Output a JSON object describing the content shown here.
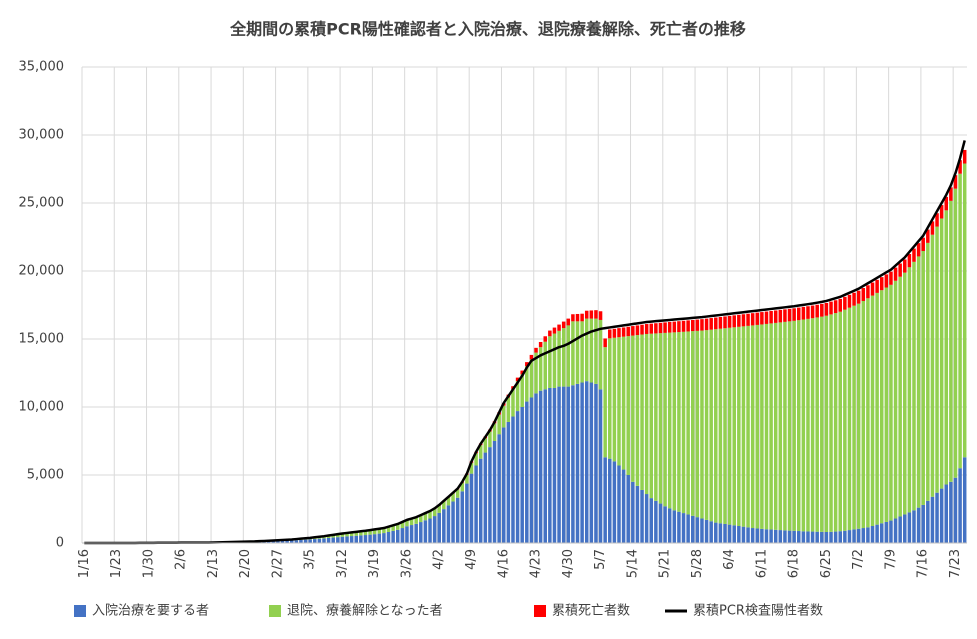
{
  "chart_data": {
    "type": "bar",
    "stacked": true,
    "grid": true,
    "legend": "bottom",
    "title": "全期間の累積PCR陽性確認者と入院治療、退院療養解除、死亡者の推移",
    "ylim": [
      0,
      35000
    ],
    "yticks": [
      0,
      {
        "value": 5000,
        "label": "5,000"
      },
      {
        "value": 10000,
        "label": "10,000"
      },
      {
        "value": 15000,
        "label": "15,000"
      },
      {
        "value": 20000,
        "label": "20,000"
      },
      {
        "value": 25000,
        "label": "25,000"
      },
      {
        "value": 30000,
        "label": "30,000"
      },
      {
        "value": 35000,
        "label": "35,000"
      }
    ],
    "categories": [
      "1/16",
      null,
      null,
      null,
      null,
      null,
      null,
      "1/23",
      null,
      null,
      null,
      null,
      null,
      null,
      "1/30",
      null,
      null,
      null,
      null,
      null,
      null,
      "2/6",
      null,
      null,
      null,
      null,
      null,
      null,
      "2/13",
      null,
      null,
      null,
      null,
      null,
      null,
      "2/20",
      null,
      null,
      null,
      null,
      null,
      null,
      "2/27",
      null,
      null,
      null,
      null,
      null,
      null,
      "3/5",
      null,
      null,
      null,
      null,
      null,
      null,
      "3/12",
      null,
      null,
      null,
      null,
      null,
      null,
      "3/19",
      null,
      null,
      null,
      null,
      null,
      null,
      "3/26",
      null,
      null,
      null,
      null,
      null,
      null,
      "4/2",
      null,
      null,
      null,
      null,
      null,
      null,
      "4/9",
      null,
      null,
      null,
      null,
      null,
      null,
      "4/16",
      null,
      null,
      null,
      null,
      null,
      null,
      "4/23",
      null,
      null,
      null,
      null,
      null,
      null,
      "4/30",
      null,
      null,
      null,
      null,
      null,
      null,
      "5/7",
      null,
      null,
      null,
      null,
      null,
      null,
      "5/14",
      null,
      null,
      null,
      null,
      null,
      null,
      "5/21",
      null,
      null,
      null,
      null,
      null,
      null,
      "5/28",
      null,
      null,
      null,
      null,
      null,
      null,
      "6/4",
      null,
      null,
      null,
      null,
      null,
      null,
      "6/11",
      null,
      null,
      null,
      null,
      null,
      null,
      "6/18",
      null,
      null,
      null,
      null,
      null,
      null,
      "6/25",
      null,
      null,
      null,
      null,
      null,
      null,
      "7/2",
      null,
      null,
      null,
      null,
      null,
      null,
      "7/9",
      null,
      null,
      null,
      null,
      null,
      null,
      "7/16",
      null,
      null,
      null,
      null,
      null,
      null,
      "7/23",
      null,
      null
    ],
    "series": [
      {
        "name": "入院治療を要する者",
        "color": "#4472c4",
        "values": [
          1,
          1,
          1,
          1,
          1,
          1,
          1,
          2,
          2,
          2,
          4,
          4,
          7,
          7,
          11,
          12,
          14,
          17,
          20,
          20,
          22,
          24,
          24,
          24,
          23,
          23,
          24,
          24,
          33,
          42,
          46,
          50,
          58,
          66,
          74,
          80,
          88,
          95,
          110,
          117,
          127,
          138,
          150,
          163,
          176,
          188,
          208,
          228,
          248,
          265,
          290,
          315,
          340,
          370,
          400,
          430,
          460,
          485,
          510,
          535,
          560,
          585,
          615,
          650,
          690,
          730,
          810,
          890,
          970,
          1100,
          1230,
          1320,
          1410,
          1540,
          1670,
          1800,
          1980,
          2210,
          2490,
          2770,
          3050,
          3330,
          3800,
          4370,
          5100,
          5700,
          6200,
          6650,
          7050,
          7500,
          8000,
          8500,
          8900,
          9300,
          9700,
          10000,
          10400,
          10700,
          11000,
          11200,
          11300,
          11400,
          11400,
          11500,
          11500,
          11500,
          11600,
          11700,
          11800,
          11900,
          11800,
          11700,
          11300,
          6300,
          6200,
          6000,
          5700,
          5400,
          5000,
          4500,
          4200,
          3900,
          3600,
          3300,
          3100,
          2900,
          2700,
          2550,
          2400,
          2300,
          2200,
          2100,
          2000,
          1900,
          1800,
          1700,
          1600,
          1500,
          1450,
          1400,
          1350,
          1300,
          1250,
          1200,
          1150,
          1100,
          1070,
          1040,
          1010,
          990,
          970,
          950,
          930,
          910,
          900,
          880,
          860,
          850,
          840,
          830,
          820,
          810,
          820,
          840,
          870,
          900,
          950,
          1000,
          1050,
          1100,
          1150,
          1250,
          1350,
          1450,
          1550,
          1650,
          1800,
          1950,
          2100,
          2250,
          2400,
          2600,
          2800,
          3100,
          3400,
          3700,
          4000,
          4300,
          4500,
          4800,
          5500,
          6300
        ]
      },
      {
        "name": "退院、療養解除となった者",
        "color": "#92d050",
        "values": [
          0,
          0,
          0,
          0,
          0,
          0,
          0,
          0,
          0,
          0,
          0,
          0,
          0,
          0,
          0,
          0,
          0,
          0,
          0,
          0,
          0,
          1,
          1,
          2,
          3,
          3,
          4,
          4,
          6,
          7,
          8,
          9,
          11,
          13,
          15,
          18,
          20,
          23,
          27,
          30,
          35,
          39,
          46,
          53,
          59,
          67,
          76,
          86,
          96,
          108,
          122,
          137,
          151,
          170,
          189,
          208,
          226,
          240,
          254,
          268,
          282,
          297,
          315,
          328,
          337,
          346,
          363,
          382,
          400,
          418,
          435,
          445,
          455,
          472,
          490,
          508,
          526,
          540,
          560,
          580,
          600,
          620,
          640,
          660,
          800,
          900,
          1000,
          1050,
          1150,
          1300,
          1450,
          1600,
          1800,
          2000,
          2200,
          2400,
          2600,
          2800,
          3000,
          3200,
          3500,
          3800,
          4000,
          4100,
          4300,
          4500,
          4700,
          4600,
          4500,
          4600,
          4700,
          4800,
          5100,
          8100,
          8850,
          9090,
          9430,
          9770,
          10210,
          10750,
          11090,
          11430,
          11770,
          12090,
          12310,
          12530,
          12750,
          12920,
          13090,
          13210,
          13330,
          13455,
          13580,
          13700,
          13820,
          13950,
          14085,
          14220,
          14305,
          14390,
          14475,
          14560,
          14645,
          14730,
          14815,
          14900,
          14965,
          15030,
          15098,
          15156,
          15214,
          15272,
          15330,
          15388,
          15436,
          15504,
          15572,
          15630,
          15688,
          15756,
          15824,
          15902,
          15990,
          16068,
          16136,
          16254,
          16352,
          16450,
          16548,
          16696,
          16844,
          16942,
          17040,
          17138,
          17236,
          17334,
          17482,
          17630,
          17778,
          18026,
          18274,
          18472,
          18670,
          18968,
          19266,
          19564,
          19862,
          20160,
          20658,
          21256,
          21654,
          21602
        ]
      },
      {
        "name": "累積死亡者数",
        "color": "#ff0000",
        "values": [
          0,
          0,
          0,
          0,
          0,
          0,
          0,
          0,
          0,
          0,
          0,
          0,
          0,
          0,
          0,
          0,
          0,
          0,
          0,
          0,
          0,
          0,
          0,
          0,
          0,
          0,
          0,
          0,
          1,
          1,
          1,
          1,
          1,
          1,
          1,
          2,
          2,
          2,
          3,
          3,
          3,
          3,
          4,
          4,
          5,
          5,
          6,
          6,
          6,
          7,
          8,
          8,
          9,
          10,
          11,
          12,
          14,
          15,
          16,
          17,
          18,
          18,
          20,
          22,
          23,
          24,
          27,
          28,
          30,
          32,
          35,
          35,
          35,
          38,
          40,
          42,
          44,
          50,
          50,
          50,
          50,
          50,
          60,
          70,
          100,
          110,
          120,
          130,
          140,
          150,
          170,
          190,
          210,
          230,
          260,
          280,
          300,
          330,
          350,
          380,
          400,
          420,
          440,
          460,
          480,
          500,
          520,
          540,
          560,
          580,
          600,
          620,
          640,
          640,
          650,
          660,
          670,
          680,
          690,
          700,
          710,
          720,
          730,
          740,
          750,
          760,
          770,
          780,
          790,
          800,
          810,
          815,
          820,
          830,
          840,
          850,
          855,
          860,
          865,
          870,
          875,
          880,
          885,
          890,
          895,
          900,
          905,
          910,
          912,
          914,
          916,
          918,
          920,
          922,
          924,
          926,
          928,
          930,
          932,
          934,
          936,
          938,
          940,
          942,
          944,
          946,
          948,
          950,
          952,
          954,
          956,
          958,
          960,
          962,
          964,
          966,
          968,
          970,
          972,
          974,
          976,
          978,
          980,
          982,
          984,
          986,
          988,
          990,
          992,
          994,
          996,
          998
        ]
      },
      {
        "name": "累積PCR検査陽性者数",
        "color": "#000000",
        "type": "line",
        "values": [
          1,
          1,
          1,
          1,
          1,
          1,
          1,
          2,
          2,
          2,
          4,
          4,
          7,
          7,
          11,
          12,
          14,
          17,
          20,
          20,
          22,
          25,
          25,
          26,
          26,
          26,
          28,
          28,
          40,
          50,
          55,
          60,
          70,
          80,
          90,
          100,
          110,
          120,
          140,
          150,
          165,
          180,
          200,
          220,
          240,
          260,
          290,
          320,
          350,
          380,
          420,
          460,
          500,
          550,
          600,
          650,
          700,
          740,
          780,
          820,
          860,
          900,
          950,
          1000,
          1050,
          1100,
          1200,
          1300,
          1400,
          1550,
          1700,
          1800,
          1900,
          2050,
          2200,
          2350,
          2550,
          2800,
          3100,
          3400,
          3700,
          4000,
          4500,
          5100,
          6000,
          6700,
          7300,
          7800,
          8300,
          8900,
          9600,
          10300,
          10800,
          11300,
          11800,
          12300,
          12900,
          13400,
          13600,
          13800,
          13950,
          14100,
          14250,
          14400,
          14500,
          14650,
          14850,
          15050,
          15250,
          15400,
          15550,
          15650,
          15750,
          15800,
          15850,
          15900,
          15950,
          16000,
          16050,
          16100,
          16150,
          16200,
          16250,
          16280,
          16310,
          16340,
          16370,
          16400,
          16430,
          16460,
          16490,
          16520,
          16550,
          16580,
          16610,
          16650,
          16690,
          16730,
          16770,
          16810,
          16850,
          16890,
          16930,
          16970,
          17010,
          17050,
          17090,
          17130,
          17170,
          17210,
          17250,
          17290,
          17330,
          17370,
          17410,
          17460,
          17510,
          17560,
          17610,
          17670,
          17730,
          17800,
          17900,
          18000,
          18100,
          18250,
          18400,
          18550,
          18700,
          18900,
          19100,
          19300,
          19500,
          19700,
          19900,
          20100,
          20400,
          20700,
          21000,
          21400,
          21800,
          22200,
          22600,
          23200,
          23800,
          24400,
          25000,
          25600,
          26300,
          27200,
          28300,
          29600
        ]
      }
    ]
  }
}
